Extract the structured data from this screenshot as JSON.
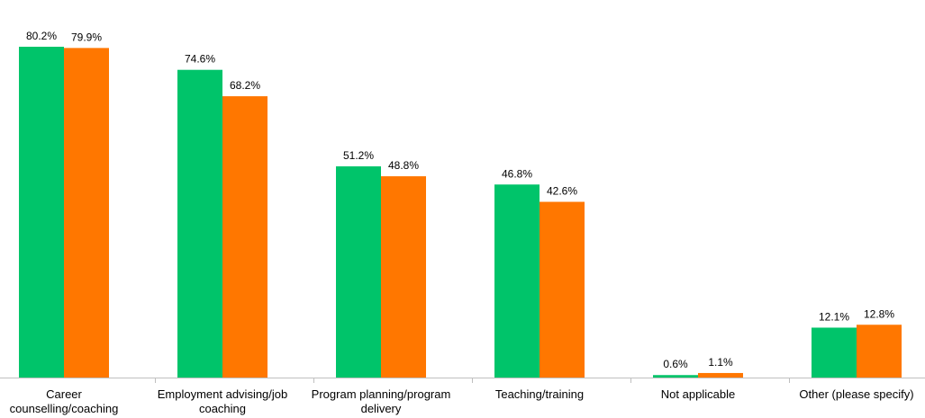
{
  "chart_data": {
    "type": "bar",
    "categories": [
      [
        "Career",
        "counselling/coaching"
      ],
      [
        "Employment advising/job",
        "coaching"
      ],
      [
        "Program planning/program",
        "delivery"
      ],
      [
        "Teaching/training"
      ],
      [
        "Not applicable"
      ],
      [
        "Other (please specify)"
      ]
    ],
    "series": [
      {
        "color": "#00c46a",
        "values": [
          80.2,
          74.6,
          51.2,
          46.8,
          0.6,
          12.1
        ],
        "labels": [
          "80.2%",
          "74.6%",
          "51.2%",
          "46.8%",
          "0.6%",
          "12.1%"
        ]
      },
      {
        "color": "#ff7700",
        "values": [
          79.9,
          68.2,
          48.8,
          42.6,
          1.1,
          12.8
        ],
        "labels": [
          "79.9%",
          "68.2%",
          "48.8%",
          "42.6%",
          "1.1%",
          "12.8%"
        ]
      }
    ],
    "ylim": [
      0,
      80.2
    ],
    "grid": false,
    "legend": "none"
  }
}
